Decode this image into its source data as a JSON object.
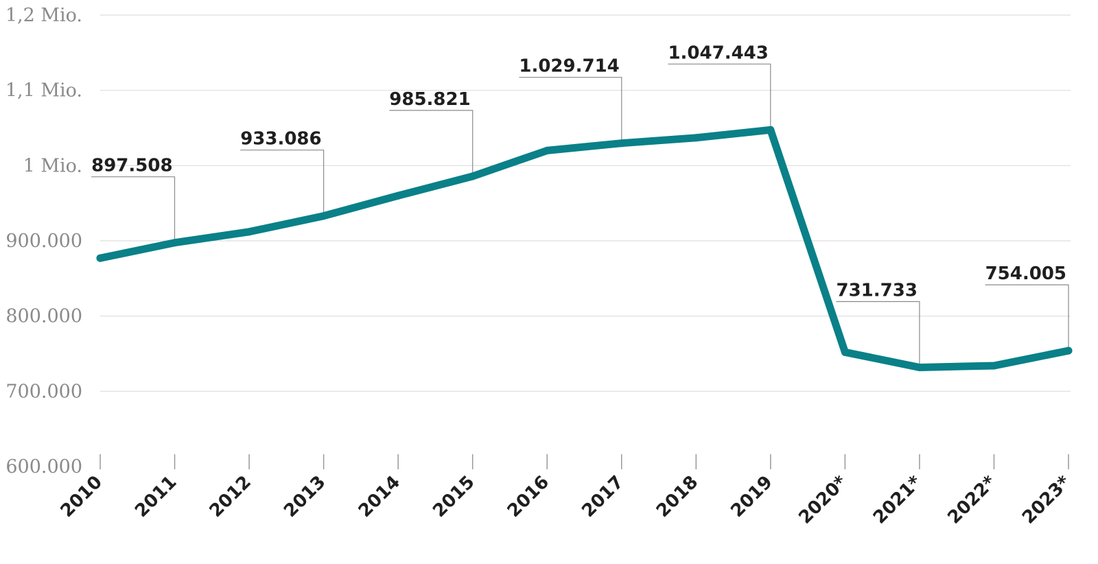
{
  "chart_data": {
    "type": "line",
    "categories": [
      "2010",
      "2011",
      "2012",
      "2013",
      "2014",
      "2015",
      "2016",
      "2017",
      "2018",
      "2019",
      "2020*",
      "2021*",
      "2022*",
      "2023*"
    ],
    "series": [
      {
        "values": [
          877000,
          897508,
          912000,
          933086,
          960000,
          985821,
          1020000,
          1029714,
          1037000,
          1047443,
          752000,
          731733,
          734000,
          754005
        ]
      }
    ],
    "yticks": [
      {
        "value": 600000,
        "label": "600.000"
      },
      {
        "value": 700000,
        "label": "700.000"
      },
      {
        "value": 800000,
        "label": "800.000"
      },
      {
        "value": 900000,
        "label": "900.000"
      },
      {
        "value": 1000000,
        "label": "1 Mio."
      },
      {
        "value": 1100000,
        "label": "1,1 Mio."
      },
      {
        "value": 1200000,
        "label": "1,2 Mio."
      }
    ],
    "ylim": [
      600000,
      1200000
    ],
    "annotations": [
      {
        "index": 1,
        "label": "897.508"
      },
      {
        "index": 3,
        "label": "933.086"
      },
      {
        "index": 5,
        "label": "985.821"
      },
      {
        "index": 7,
        "label": "1.029.714"
      },
      {
        "index": 9,
        "label": "1.047.443"
      },
      {
        "index": 11,
        "label": "731.733"
      },
      {
        "index": 13,
        "label": "754.005"
      }
    ],
    "title": "",
    "xlabel": "",
    "ylabel": "",
    "grid": true,
    "colors": {
      "line": "#0a8088",
      "grid": "#dddddd",
      "tick_text": "#8a8a8a",
      "label_text": "#1f1f1f"
    }
  }
}
